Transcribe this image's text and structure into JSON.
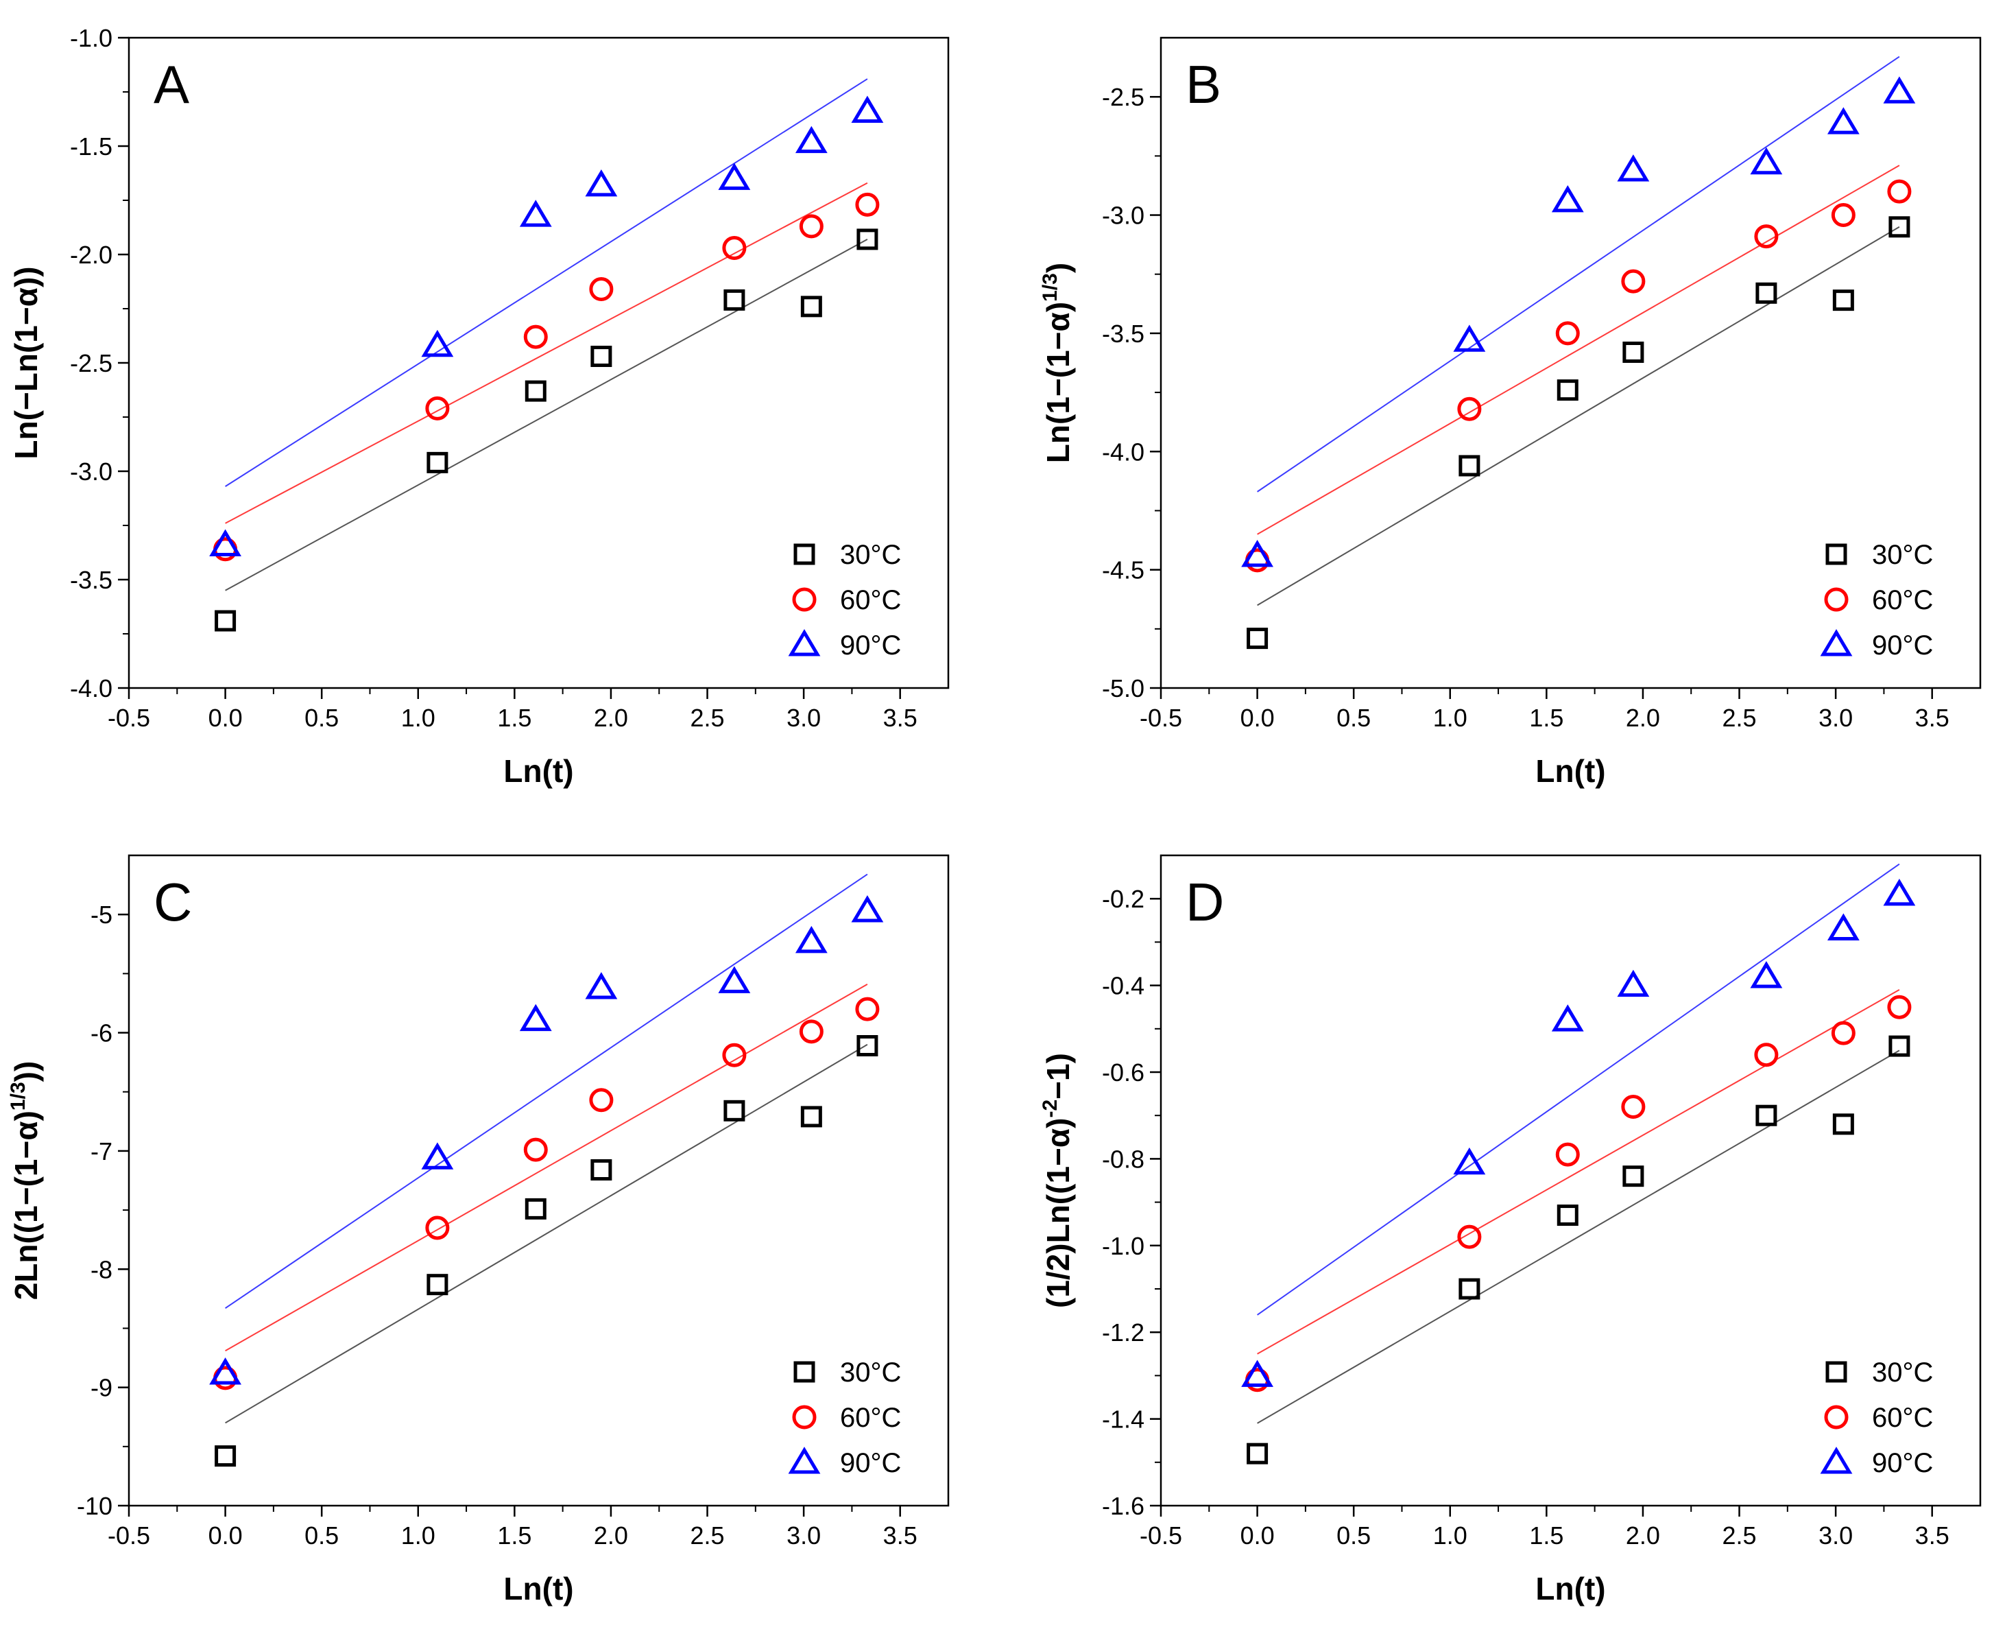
{
  "chart_data": [
    {
      "type": "scatter",
      "panel": "A",
      "xlabel": "Ln(t)",
      "ylabel": "Ln(−Ln(1−α))",
      "xlim": [
        -0.5,
        3.75
      ],
      "ylim": [
        -4.0,
        -1.0
      ],
      "xticks": [
        -0.5,
        0.0,
        0.5,
        1.0,
        1.5,
        2.0,
        2.5,
        3.0,
        3.5
      ],
      "xtick_labels": [
        "-0.5",
        "0.0",
        "0.5",
        "1.0",
        "1.5",
        "2.0",
        "2.5",
        "3.0",
        "3.5"
      ],
      "yticks": [
        -4.0,
        -3.5,
        -3.0,
        -2.5,
        -2.0,
        -1.5,
        -1.0
      ],
      "ytick_labels": [
        "-4.0",
        "-3.5",
        "-3.0",
        "-2.5",
        "-2.0",
        "-1.5",
        "-1.0"
      ],
      "legend_position": "bottom-right",
      "x": [
        0.0,
        1.1,
        1.61,
        1.95,
        2.64,
        3.04,
        3.33
      ],
      "series": [
        {
          "name": "30°C",
          "label": "30",
          "unit": "°C",
          "marker": "square",
          "color": "#000000",
          "line_color": "#555555",
          "values": [
            -3.69,
            -2.96,
            -2.63,
            -2.47,
            -2.21,
            -2.24,
            -1.93
          ],
          "fit": [
            [
              0.0,
              -3.55
            ],
            [
              3.33,
              -1.93
            ]
          ]
        },
        {
          "name": "60°C",
          "label": "60",
          "unit": "°C",
          "marker": "circle",
          "color": "#ff0000",
          "line_color": "#ff3b3b",
          "values": [
            -3.36,
            -2.71,
            -2.38,
            -2.16,
            -1.97,
            -1.87,
            -1.77
          ],
          "fit": [
            [
              0.0,
              -3.24
            ],
            [
              3.33,
              -1.67
            ]
          ]
        },
        {
          "name": "90°C",
          "label": "90",
          "unit": "°C",
          "marker": "triangle",
          "color": "#0000ff",
          "line_color": "#3b3bff",
          "values": [
            -3.34,
            -2.42,
            -1.82,
            -1.68,
            -1.65,
            -1.48,
            -1.34
          ],
          "fit": [
            [
              0.0,
              -3.07
            ],
            [
              3.33,
              -1.19
            ]
          ]
        }
      ]
    },
    {
      "type": "scatter",
      "panel": "B",
      "xlabel": "Ln(t)",
      "ylabel": "Ln(1−(1−α)",
      "ylabel_sup": "1/3",
      "ylabel_tail": ")",
      "xlim": [
        -0.5,
        3.75
      ],
      "ylim": [
        -5.0,
        -2.25
      ],
      "xticks": [
        -0.5,
        0.0,
        0.5,
        1.0,
        1.5,
        2.0,
        2.5,
        3.0,
        3.5
      ],
      "xtick_labels": [
        "-0.5",
        "0.0",
        "0.5",
        "1.0",
        "1.5",
        "2.0",
        "2.5",
        "3.0",
        "3.5"
      ],
      "yticks": [
        -5.0,
        -4.5,
        -4.0,
        -3.5,
        -3.0,
        -2.5
      ],
      "ytick_labels": [
        "-5.0",
        "-4.5",
        "-4.0",
        "-3.5",
        "-3.0",
        "-2.5"
      ],
      "legend_position": "bottom-right",
      "x": [
        0.0,
        1.1,
        1.61,
        1.95,
        2.64,
        3.04,
        3.33
      ],
      "series": [
        {
          "name": "30°C",
          "label": "30",
          "unit": "°C",
          "marker": "square",
          "color": "#000000",
          "line_color": "#555555",
          "values": [
            -4.79,
            -4.06,
            -3.74,
            -3.58,
            -3.33,
            -3.36,
            -3.05
          ],
          "fit": [
            [
              0.0,
              -4.65
            ],
            [
              3.33,
              -3.05
            ]
          ]
        },
        {
          "name": "60°C",
          "label": "60",
          "unit": "°C",
          "marker": "circle",
          "color": "#ff0000",
          "line_color": "#ff3b3b",
          "values": [
            -4.46,
            -3.82,
            -3.5,
            -3.28,
            -3.09,
            -3.0,
            -2.9
          ],
          "fit": [
            [
              0.0,
              -4.35
            ],
            [
              3.33,
              -2.79
            ]
          ]
        },
        {
          "name": "90°C",
          "label": "90",
          "unit": "°C",
          "marker": "triangle",
          "color": "#0000ff",
          "line_color": "#3b3bff",
          "values": [
            -4.44,
            -3.53,
            -2.94,
            -2.81,
            -2.78,
            -2.61,
            -2.48
          ],
          "fit": [
            [
              0.0,
              -4.17
            ],
            [
              3.33,
              -2.33
            ]
          ]
        }
      ]
    },
    {
      "type": "scatter",
      "panel": "C",
      "xlabel": "Ln(t)",
      "ylabel": "2Ln((1−(1−α)",
      "ylabel_sup": "1/3",
      "ylabel_tail": "))",
      "xlim": [
        -0.5,
        3.75
      ],
      "ylim": [
        -10.0,
        -4.5
      ],
      "xticks": [
        -0.5,
        0.0,
        0.5,
        1.0,
        1.5,
        2.0,
        2.5,
        3.0,
        3.5
      ],
      "xtick_labels": [
        "-0.5",
        "0.0",
        "0.5",
        "1.0",
        "1.5",
        "2.0",
        "2.5",
        "3.0",
        "3.5"
      ],
      "yticks": [
        -10,
        -9,
        -8,
        -7,
        -6,
        -5
      ],
      "ytick_labels": [
        "-10",
        "-9",
        "-8",
        "-7",
        "-6",
        "-5"
      ],
      "legend_position": "bottom-right",
      "x": [
        0.0,
        1.1,
        1.61,
        1.95,
        2.64,
        3.04,
        3.33
      ],
      "series": [
        {
          "name": "30°C",
          "label": "30",
          "unit": "°C",
          "marker": "square",
          "color": "#000000",
          "line_color": "#555555",
          "values": [
            -9.58,
            -8.13,
            -7.49,
            -7.16,
            -6.66,
            -6.71,
            -6.11
          ],
          "fit": [
            [
              0.0,
              -9.3
            ],
            [
              3.33,
              -6.1
            ]
          ]
        },
        {
          "name": "60°C",
          "label": "60",
          "unit": "°C",
          "marker": "circle",
          "color": "#ff0000",
          "line_color": "#ff3b3b",
          "values": [
            -8.92,
            -7.65,
            -6.99,
            -6.57,
            -6.19,
            -5.99,
            -5.8
          ],
          "fit": [
            [
              0.0,
              -8.69
            ],
            [
              3.33,
              -5.59
            ]
          ]
        },
        {
          "name": "90°C",
          "label": "90",
          "unit": "°C",
          "marker": "triangle",
          "color": "#0000ff",
          "line_color": "#3b3bff",
          "values": [
            -8.88,
            -7.06,
            -5.89,
            -5.62,
            -5.57,
            -5.23,
            -4.97
          ],
          "fit": [
            [
              0.0,
              -8.33
            ],
            [
              3.33,
              -4.66
            ]
          ]
        }
      ]
    },
    {
      "type": "scatter",
      "panel": "D",
      "xlabel": "Ln(t)",
      "ylabel": "(1/2)Ln((1−α)",
      "ylabel_sup": "-2",
      "ylabel_tail": "−1)",
      "xlim": [
        -0.5,
        3.75
      ],
      "ylim": [
        -1.6,
        -0.1
      ],
      "xticks": [
        -0.5,
        0.0,
        0.5,
        1.0,
        1.5,
        2.0,
        2.5,
        3.0,
        3.5
      ],
      "xtick_labels": [
        "-0.5",
        "0.0",
        "0.5",
        "1.0",
        "1.5",
        "2.0",
        "2.5",
        "3.0",
        "3.5"
      ],
      "yticks": [
        -1.6,
        -1.4,
        -1.2,
        -1.0,
        -0.8,
        -0.6,
        -0.4,
        -0.2
      ],
      "ytick_labels": [
        "-1.6",
        "-1.4",
        "-1.2",
        "-1.0",
        "-0.8",
        "-0.6",
        "-0.4",
        "-0.2"
      ],
      "legend_position": "bottom-right",
      "x": [
        0.0,
        1.1,
        1.61,
        1.95,
        2.64,
        3.04,
        3.33
      ],
      "series": [
        {
          "name": "30°C",
          "label": "30",
          "unit": "°C",
          "marker": "square",
          "color": "#000000",
          "line_color": "#555555",
          "values": [
            -1.48,
            -1.1,
            -0.93,
            -0.84,
            -0.7,
            -0.72,
            -0.54
          ],
          "fit": [
            [
              0.0,
              -1.41
            ],
            [
              3.33,
              -0.55
            ]
          ]
        },
        {
          "name": "60°C",
          "label": "60",
          "unit": "°C",
          "marker": "circle",
          "color": "#ff0000",
          "line_color": "#ff3b3b",
          "values": [
            -1.31,
            -0.98,
            -0.79,
            -0.68,
            -0.56,
            -0.51,
            -0.45
          ],
          "fit": [
            [
              0.0,
              -1.25
            ],
            [
              3.33,
              -0.41
            ]
          ]
        },
        {
          "name": "90°C",
          "label": "90",
          "unit": "°C",
          "marker": "triangle",
          "color": "#0000ff",
          "line_color": "#3b3bff",
          "values": [
            -1.3,
            -0.81,
            -0.48,
            -0.4,
            -0.38,
            -0.27,
            -0.19
          ],
          "fit": [
            [
              0.0,
              -1.16
            ],
            [
              3.33,
              -0.12
            ]
          ]
        }
      ]
    }
  ]
}
